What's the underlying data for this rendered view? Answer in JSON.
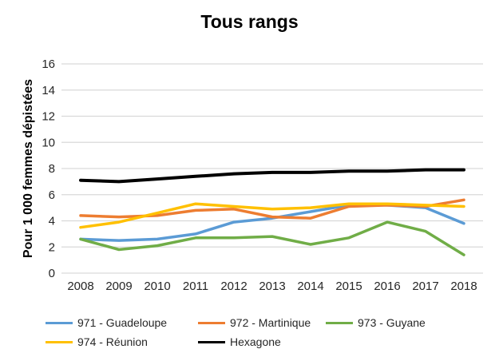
{
  "chart_data": {
    "type": "line",
    "title": "Tous rangs",
    "xlabel": "",
    "ylabel": "Pour 1 000 femmes dépistées",
    "categories": [
      "2008",
      "2009",
      "2010",
      "2011",
      "2012",
      "2013",
      "2014",
      "2015",
      "2016",
      "2017",
      "2018"
    ],
    "yticks": [
      0,
      2,
      4,
      6,
      8,
      10,
      12,
      14,
      16
    ],
    "ylim": [
      0,
      16
    ],
    "grid": "horizontal",
    "legend_position": "bottom",
    "series": [
      {
        "name": "971 - Guadeloupe",
        "color": "#5B9BD5",
        "values": [
          2.6,
          2.5,
          2.6,
          3.0,
          3.9,
          4.2,
          4.7,
          5.2,
          5.2,
          5.0,
          3.8
        ]
      },
      {
        "name": "972 - Martinique",
        "color": "#ED7D31",
        "values": [
          4.4,
          4.3,
          4.4,
          4.8,
          4.9,
          4.3,
          4.2,
          5.1,
          5.2,
          5.1,
          5.6
        ]
      },
      {
        "name": "973 - Guyane",
        "color": "#70AD47",
        "values": [
          2.6,
          1.8,
          2.1,
          2.7,
          2.7,
          2.8,
          2.2,
          2.7,
          3.9,
          3.2,
          1.4
        ]
      },
      {
        "name": "974 - Réunion",
        "color": "#FFC000",
        "values": [
          3.5,
          3.9,
          4.6,
          5.3,
          5.1,
          4.9,
          5.0,
          5.3,
          5.3,
          5.2,
          5.1
        ]
      },
      {
        "name": "Hexagone",
        "color": "#000000",
        "values": [
          7.1,
          7.0,
          7.2,
          7.4,
          7.6,
          7.7,
          7.7,
          7.8,
          7.8,
          7.9,
          7.9
        ]
      }
    ]
  },
  "colors": {
    "gridline": "#D9D9D9",
    "background": "#FFFFFF",
    "tick_text": "#262626"
  }
}
